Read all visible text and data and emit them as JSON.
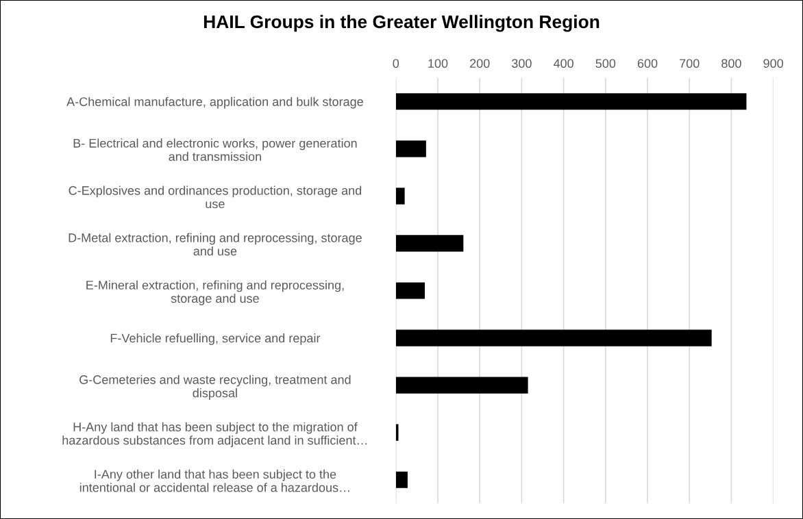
{
  "chart_data": {
    "type": "bar",
    "orientation": "horizontal",
    "title": "HAIL Groups in the Greater Wellington Region",
    "categories": [
      "A-Chemical manufacture, application and bulk storage",
      "B- Electrical and electronic works, power generation\nand transmission",
      "C-Explosives and ordinances production, storage and\nuse",
      "D-Metal extraction, refining and reprocessing, storage\nand use",
      "E-Mineral extraction, refining and reprocessing,\nstorage and use",
      "F-Vehicle refuelling, service and repair",
      "G-Cemeteries and waste recycling, treatment and\ndisposal",
      "H-Any land that has been subject to the migration of\nhazardous substances from adjacent land in sufficient…",
      "I-Any other land that has been subject to the\nintentional or accidental release of a hazardous…"
    ],
    "values": [
      836,
      72,
      21,
      161,
      69,
      753,
      315,
      6,
      28
    ],
    "color": "#000000",
    "xlim": [
      0,
      900
    ],
    "xticks": [
      0,
      100,
      200,
      300,
      400,
      500,
      600,
      700,
      800,
      900
    ],
    "grid": "x",
    "legend": false
  }
}
